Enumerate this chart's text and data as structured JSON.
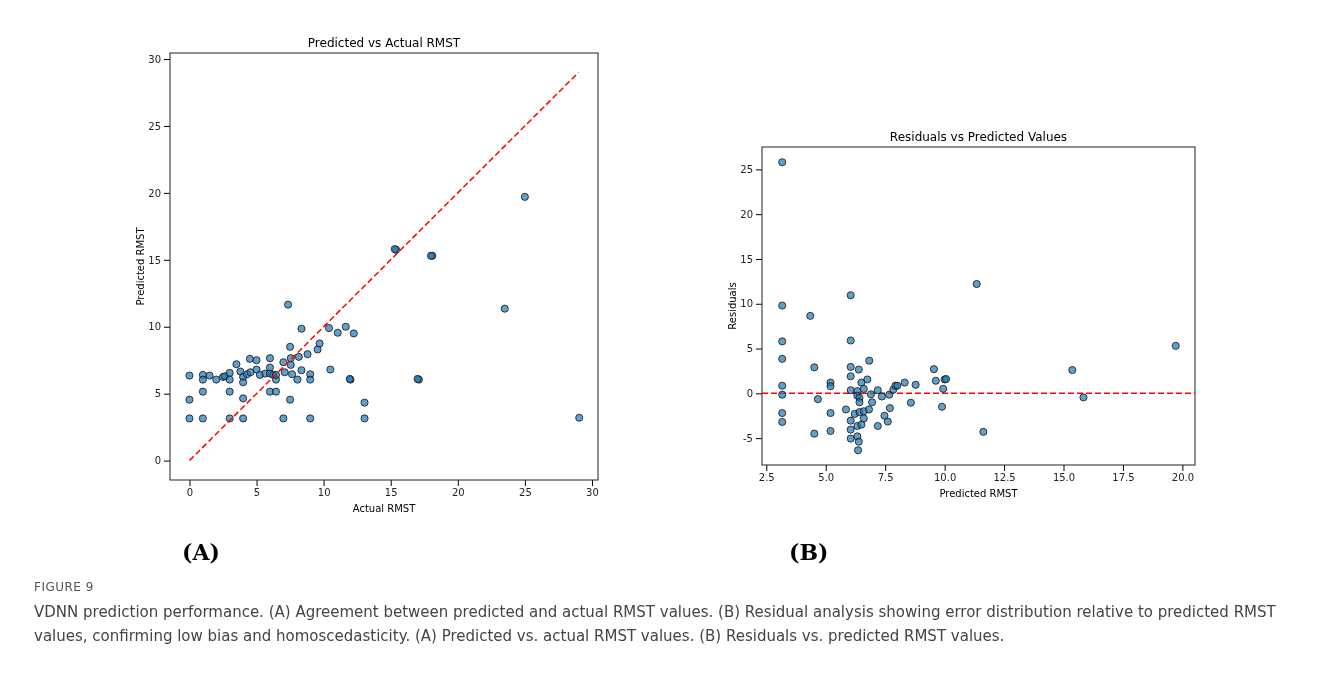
{
  "chart_data": [
    {
      "type": "scatter",
      "title": "Predicted vs Actual RMST",
      "xlabel": "Actual RMST",
      "ylabel": "Predicted RMST",
      "marker": "circle",
      "grid": false,
      "xlim": [
        -1.45,
        30.45
      ],
      "ylim": [
        -1.45,
        30.45
      ],
      "xticks": [
        0,
        5,
        10,
        15,
        20,
        25,
        30
      ],
      "yticks": [
        0,
        5,
        10,
        15,
        20,
        25,
        30
      ],
      "annotations": [
        "(A)",
        "FIGURE 9",
        "VDNN prediction performance. (A) Agreement between predicted and actual RMST values. (B) Residual analysis showing error distribution relative to predicted RMST values, confirming low bias and homoscedasticity. (A) Predicted vs. actual RMST values. (B) Residuals vs. predicted RMST values."
      ],
      "series": [
        {
          "color": "#1f77b4",
          "x": [
            0,
            0,
            0,
            1,
            1,
            1,
            1,
            1.5,
            2,
            2.5,
            2.65,
            3,
            3,
            3,
            3,
            3.5,
            3.8,
            4,
            4,
            4,
            4,
            4.3,
            4.5,
            4.55,
            5,
            5,
            5.25,
            5.65,
            6,
            6,
            6,
            6,
            6.25,
            6.45,
            6.45,
            6.45,
            7,
            7,
            7.1,
            7.35,
            7.5,
            7.55,
            7.55,
            7.65,
            7.5,
            8.05,
            8.15,
            8.35,
            8.35,
            8.8,
            9,
            9,
            9,
            9.55,
            9.7,
            10.4,
            10.5,
            11.05,
            11.65,
            12,
            12.25,
            13.05,
            13.05,
            15.4,
            17.1,
            18.1,
            15.3,
            18,
            25,
            23.5,
            29.05,
            17,
            11.95
          ],
          "values": [
            3.15,
            4.55,
            6.35,
            6.4,
            6.05,
            5.15,
            3.15,
            6.35,
            6.05,
            6.25,
            6.3,
            6.55,
            6.05,
            5.15,
            3.15,
            7.2,
            6.65,
            6.25,
            5.85,
            4.65,
            3.15,
            6.45,
            7.6,
            6.6,
            7.5,
            6.8,
            6.4,
            6.5,
            7.65,
            6.95,
            6.5,
            5.15,
            6.4,
            6.05,
            6.4,
            5.15,
            7.35,
            3.15,
            6.6,
            11.65,
            8.5,
            7.65,
            7.15,
            6.45,
            4.55,
            6.05,
            7.75,
            9.85,
            6.75,
            7.95,
            6.45,
            6.05,
            3.15,
            8.3,
            8.75,
            9.9,
            6.8,
            9.55,
            10,
            6.05,
            9.5,
            4.33,
            3.15,
            15.75,
            6.05,
            15.3,
            15.8,
            15.3,
            19.7,
            11.35,
            3.2,
            6.1,
            6.1
          ]
        },
        {
          "type": "line",
          "marker": "none",
          "color": "#ff0000",
          "line_style": "dashed",
          "x": [
            0,
            29
          ],
          "values": [
            0,
            29
          ]
        }
      ]
    },
    {
      "type": "scatter",
      "title": "Residuals vs Predicted Values",
      "xlabel": "Predicted RMST",
      "ylabel": "Residuals",
      "marker": "circle",
      "grid": false,
      "xlim": [
        2.32,
        20.53
      ],
      "ylim": [
        -8,
        27.5
      ],
      "xticks": [
        {
          "value": 2.5,
          "label": "2.5"
        },
        {
          "value": 5,
          "label": "5.0"
        },
        {
          "value": 7.5,
          "label": "7.5"
        },
        {
          "value": 10,
          "label": "10.0"
        },
        {
          "value": 12.5,
          "label": "12.5"
        },
        {
          "value": 15,
          "label": "15.0"
        },
        {
          "value": 17.5,
          "label": "17.5"
        },
        {
          "value": 20,
          "label": "20.0"
        }
      ],
      "yticks": [
        -5,
        0,
        5,
        10,
        15,
        20,
        25
      ],
      "annotations": [
        "(B)"
      ],
      "ref_lines": [
        {
          "axis": "y",
          "value": 0,
          "color": "#ff0000",
          "line_style": "dashed"
        }
      ],
      "series": [
        {
          "color": "#1f77b4",
          "x": [
            3.17,
            3.17,
            3.17,
            3.17,
            3.17,
            3.17,
            3.17,
            3.17,
            4.35,
            4.52,
            4.52,
            4.67,
            5.2,
            5.2,
            5.2,
            5.2,
            5.85,
            6.05,
            6.05,
            6.05,
            6.05,
            6.05,
            6.05,
            6.05,
            6.05,
            6.22,
            6.33,
            6.33,
            6.33,
            6.33,
            6.39,
            6.36,
            6.39,
            6.42,
            6.42,
            6.42,
            6.5,
            6.5,
            6.6,
            6.6,
            6.6,
            6.75,
            6.82,
            6.83,
            6.9,
            6.95,
            7.19,
            7.19,
            7.36,
            7.47,
            7.61,
            7.67,
            7.7,
            7.84,
            7.93,
            8.01,
            8.32,
            8.58,
            8.78,
            9.55,
            9.63,
            9.89,
            9.94,
            10,
            10.06,
            11.35,
            11.63,
            15.37,
            15.84,
            19.72
          ],
          "values": [
            25.8,
            9.8,
            5.8,
            3.85,
            0.85,
            -0.15,
            -2.2,
            -3.2,
            8.65,
            2.9,
            -4.5,
            -0.65,
            1.2,
            0.8,
            -2.2,
            -4.2,
            -1.8,
            10.95,
            5.9,
            2.95,
            1.9,
            0.35,
            -3.05,
            -4.05,
            -5.05,
            -2.3,
            0.25,
            -0.25,
            -3.65,
            -4.8,
            -5.4,
            -6.35,
            2.65,
            -0.5,
            -1,
            -2.1,
            1.2,
            -3.5,
            0.5,
            -2.8,
            -2,
            1.55,
            -1.8,
            3.65,
            -0.1,
            -1,
            0.35,
            -3.65,
            -0.35,
            -2.5,
            -3.15,
            -0.15,
            -1.65,
            0.4,
            0.85,
            0.85,
            1.2,
            -1.05,
            0.95,
            2.7,
            1.4,
            -1.5,
            0.5,
            1.55,
            1.6,
            12.2,
            -4.3,
            2.6,
            -0.45,
            5.3
          ]
        }
      ]
    }
  ]
}
